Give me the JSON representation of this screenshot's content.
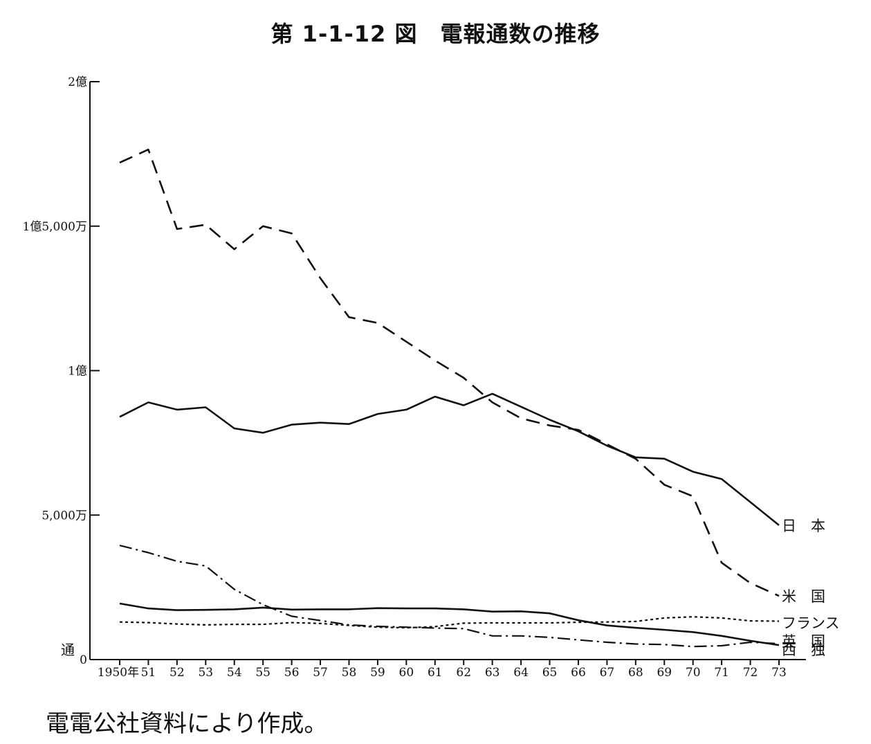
{
  "title": "第 1-1-12 図　電報通数の推移",
  "source_note": "電電公社資料により作成。",
  "chart_data": {
    "type": "line",
    "title": "第 1-1-12 図　電報通数の推移",
    "ylabel": "通",
    "xlabel": "",
    "ylim": [
      0,
      200000000
    ],
    "y_tick_values": [
      0,
      50000000,
      100000000,
      150000000,
      200000000
    ],
    "y_tick_labels": [
      "0",
      "5,000万",
      "1億",
      "1億5,000万",
      "2億"
    ],
    "x": [
      1950,
      1951,
      1952,
      1953,
      1954,
      1955,
      1956,
      1957,
      1958,
      1959,
      1960,
      1961,
      1962,
      1963,
      1964,
      1965,
      1966,
      1967,
      1968,
      1969,
      1970,
      1971,
      1972,
      1973
    ],
    "x_tick_labels": [
      "1950年",
      "51",
      "52",
      "53",
      "54",
      "55",
      "56",
      "57",
      "58",
      "59",
      "60",
      "61",
      "62",
      "63",
      "64",
      "65",
      "66",
      "67",
      "68",
      "69",
      "70",
      "71",
      "72",
      "73"
    ],
    "grid": false,
    "legend": "direct labels at line ends (right)",
    "series": [
      {
        "name": "日　本",
        "style": "solid",
        "values": [
          84000000,
          89000000,
          86500000,
          87300000,
          80000000,
          78500000,
          81300000,
          82000000,
          81500000,
          85000000,
          86500000,
          91000000,
          88000000,
          92000000,
          87500000,
          83000000,
          79000000,
          74000000,
          70000000,
          69500000,
          65000000,
          62500000,
          54500000,
          46500000
        ]
      },
      {
        "name": "米　国",
        "style": "dashed",
        "values": [
          172000000,
          176500000,
          149000000,
          150500000,
          142000000,
          150000000,
          147500000,
          132000000,
          118500000,
          116500000,
          110000000,
          103500000,
          97500000,
          89000000,
          83500000,
          81000000,
          79500000,
          74500000,
          69500000,
          60500000,
          56500000,
          33500000,
          26500000,
          22000000
        ]
      },
      {
        "name": "フランス",
        "style": "dotted",
        "values": [
          13000000,
          12800000,
          12300000,
          12000000,
          12200000,
          12200000,
          12800000,
          12500000,
          11800000,
          11200000,
          11000000,
          11400000,
          12600000,
          12700000,
          12700000,
          12700000,
          12900000,
          13000000,
          13200000,
          14400000,
          14800000,
          14400000,
          13400000,
          13300000
        ]
      },
      {
        "name": "英　国",
        "style": "solid",
        "values": [
          19400000,
          17700000,
          17100000,
          17200000,
          17400000,
          18000000,
          17300000,
          17400000,
          17400000,
          17800000,
          17700000,
          17700000,
          17400000,
          16600000,
          16700000,
          16000000,
          13600000,
          11800000,
          11000000,
          10300000,
          9500000,
          8200000,
          6500000,
          5000000
        ]
      },
      {
        "name": "西　独",
        "style": "dashdot",
        "values": [
          39500000,
          37000000,
          34000000,
          32400000,
          24300000,
          19000000,
          15000000,
          13500000,
          12000000,
          11500000,
          11200000,
          10900000,
          10700000,
          8200000,
          8200000,
          7700000,
          6800000,
          6000000,
          5400000,
          5200000,
          4500000,
          4800000,
          6000000,
          5500000
        ]
      }
    ]
  }
}
